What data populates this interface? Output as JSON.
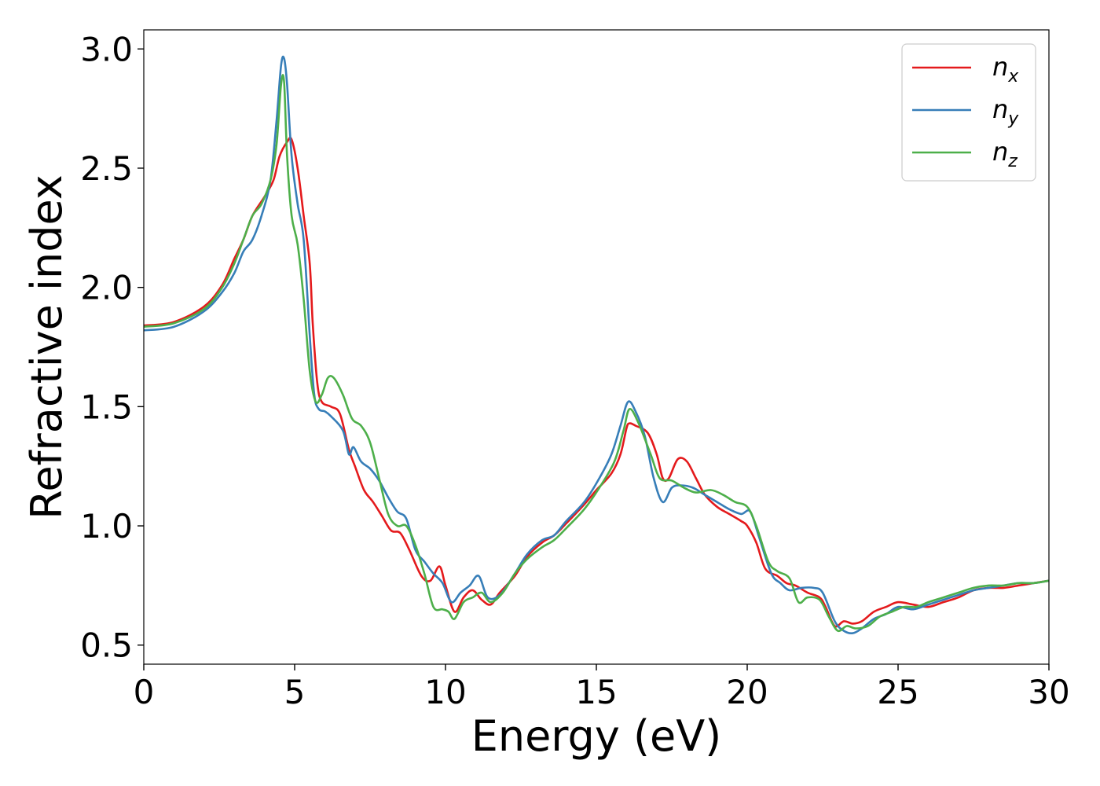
{
  "chart_data": {
    "type": "line",
    "title": "",
    "xlabel": "Energy (eV)",
    "ylabel": "Refractive index",
    "xlim": [
      0,
      30
    ],
    "ylim": [
      0.42,
      3.08
    ],
    "xticks": [
      0,
      5,
      10,
      15,
      20,
      25,
      30
    ],
    "yticks": [
      0.5,
      1.0,
      1.5,
      2.0,
      2.5,
      3.0
    ],
    "xtick_labels": [
      "0",
      "5",
      "10",
      "15",
      "20",
      "25",
      "30"
    ],
    "ytick_labels": [
      "0.5",
      "1.0",
      "1.5",
      "2.0",
      "2.5",
      "3.0"
    ],
    "grid": false,
    "legend_position": "top-right",
    "series": [
      {
        "name": "n_x",
        "label_main": "n",
        "label_sub": "x",
        "color": "#e41a1c",
        "points": [
          [
            0,
            1.84
          ],
          [
            1,
            1.855
          ],
          [
            2,
            1.92
          ],
          [
            2.6,
            2.01
          ],
          [
            3,
            2.12
          ],
          [
            3.3,
            2.2
          ],
          [
            3.6,
            2.3
          ],
          [
            4,
            2.38
          ],
          [
            4.3,
            2.45
          ],
          [
            4.5,
            2.55
          ],
          [
            4.75,
            2.61
          ],
          [
            4.9,
            2.62
          ],
          [
            5.1,
            2.5
          ],
          [
            5.3,
            2.3
          ],
          [
            5.5,
            2.1
          ],
          [
            5.6,
            1.85
          ],
          [
            5.75,
            1.6
          ],
          [
            5.9,
            1.52
          ],
          [
            6.2,
            1.5
          ],
          [
            6.5,
            1.47
          ],
          [
            6.8,
            1.32
          ],
          [
            7,
            1.25
          ],
          [
            7.3,
            1.15
          ],
          [
            7.6,
            1.1
          ],
          [
            7.9,
            1.04
          ],
          [
            8.2,
            0.98
          ],
          [
            8.5,
            0.97
          ],
          [
            8.8,
            0.9
          ],
          [
            9.2,
            0.79
          ],
          [
            9.5,
            0.77
          ],
          [
            9.8,
            0.83
          ],
          [
            10,
            0.75
          ],
          [
            10.3,
            0.64
          ],
          [
            10.6,
            0.7
          ],
          [
            10.9,
            0.73
          ],
          [
            11.2,
            0.69
          ],
          [
            11.5,
            0.67
          ],
          [
            11.8,
            0.72
          ],
          [
            12.3,
            0.79
          ],
          [
            12.7,
            0.87
          ],
          [
            13.2,
            0.93
          ],
          [
            13.6,
            0.96
          ],
          [
            14,
            1.01
          ],
          [
            14.6,
            1.09
          ],
          [
            15,
            1.15
          ],
          [
            15.5,
            1.22
          ],
          [
            15.8,
            1.3
          ],
          [
            16,
            1.41
          ],
          [
            16.1,
            1.43
          ],
          [
            16.3,
            1.42
          ],
          [
            16.7,
            1.39
          ],
          [
            17,
            1.3
          ],
          [
            17.2,
            1.2
          ],
          [
            17.4,
            1.2
          ],
          [
            17.7,
            1.28
          ],
          [
            18,
            1.27
          ],
          [
            18.3,
            1.2
          ],
          [
            18.6,
            1.13
          ],
          [
            19,
            1.08
          ],
          [
            19.4,
            1.05
          ],
          [
            19.8,
            1.02
          ],
          [
            20,
            1.0
          ],
          [
            20.3,
            0.93
          ],
          [
            20.6,
            0.82
          ],
          [
            21,
            0.79
          ],
          [
            21.3,
            0.76
          ],
          [
            21.6,
            0.75
          ],
          [
            22,
            0.72
          ],
          [
            22.4,
            0.7
          ],
          [
            22.6,
            0.66
          ],
          [
            22.9,
            0.58
          ],
          [
            23.2,
            0.6
          ],
          [
            23.5,
            0.59
          ],
          [
            23.8,
            0.6
          ],
          [
            24.2,
            0.64
          ],
          [
            24.6,
            0.66
          ],
          [
            25,
            0.68
          ],
          [
            25.5,
            0.67
          ],
          [
            26,
            0.66
          ],
          [
            26.5,
            0.68
          ],
          [
            27,
            0.7
          ],
          [
            27.5,
            0.73
          ],
          [
            28,
            0.74
          ],
          [
            28.5,
            0.74
          ],
          [
            29,
            0.75
          ],
          [
            29.5,
            0.76
          ],
          [
            30,
            0.77
          ]
        ]
      },
      {
        "name": "n_y",
        "label_main": "n",
        "label_sub": "y",
        "color": "#377eb8",
        "points": [
          [
            0,
            1.82
          ],
          [
            1,
            1.835
          ],
          [
            2,
            1.9
          ],
          [
            2.6,
            1.98
          ],
          [
            3,
            2.06
          ],
          [
            3.3,
            2.15
          ],
          [
            3.6,
            2.2
          ],
          [
            3.9,
            2.3
          ],
          [
            4.2,
            2.45
          ],
          [
            4.4,
            2.7
          ],
          [
            4.55,
            2.93
          ],
          [
            4.65,
            2.96
          ],
          [
            4.75,
            2.85
          ],
          [
            4.9,
            2.55
          ],
          [
            5.1,
            2.35
          ],
          [
            5.3,
            2.2
          ],
          [
            5.5,
            1.8
          ],
          [
            5.65,
            1.55
          ],
          [
            5.8,
            1.49
          ],
          [
            6,
            1.48
          ],
          [
            6.2,
            1.46
          ],
          [
            6.6,
            1.4
          ],
          [
            6.8,
            1.3
          ],
          [
            6.95,
            1.33
          ],
          [
            7.2,
            1.27
          ],
          [
            7.5,
            1.24
          ],
          [
            7.8,
            1.19
          ],
          [
            8.1,
            1.12
          ],
          [
            8.4,
            1.06
          ],
          [
            8.7,
            1.03
          ],
          [
            9,
            0.9
          ],
          [
            9.3,
            0.85
          ],
          [
            9.6,
            0.8
          ],
          [
            9.9,
            0.76
          ],
          [
            10.2,
            0.68
          ],
          [
            10.5,
            0.72
          ],
          [
            10.8,
            0.75
          ],
          [
            11.1,
            0.79
          ],
          [
            11.4,
            0.7
          ],
          [
            11.8,
            0.71
          ],
          [
            12.3,
            0.8
          ],
          [
            12.7,
            0.88
          ],
          [
            13.2,
            0.94
          ],
          [
            13.6,
            0.96
          ],
          [
            14,
            1.02
          ],
          [
            14.6,
            1.1
          ],
          [
            15.1,
            1.2
          ],
          [
            15.5,
            1.3
          ],
          [
            15.8,
            1.42
          ],
          [
            16.05,
            1.52
          ],
          [
            16.3,
            1.48
          ],
          [
            16.6,
            1.38
          ],
          [
            16.9,
            1.2
          ],
          [
            17.2,
            1.1
          ],
          [
            17.5,
            1.16
          ],
          [
            17.8,
            1.17
          ],
          [
            18.2,
            1.16
          ],
          [
            18.6,
            1.13
          ],
          [
            19,
            1.1
          ],
          [
            19.4,
            1.07
          ],
          [
            19.8,
            1.05
          ],
          [
            20.1,
            1.06
          ],
          [
            20.4,
            0.95
          ],
          [
            20.8,
            0.8
          ],
          [
            21.1,
            0.76
          ],
          [
            21.4,
            0.73
          ],
          [
            21.8,
            0.74
          ],
          [
            22.2,
            0.74
          ],
          [
            22.5,
            0.72
          ],
          [
            22.9,
            0.6
          ],
          [
            23.2,
            0.56
          ],
          [
            23.5,
            0.55
          ],
          [
            23.8,
            0.57
          ],
          [
            24.2,
            0.61
          ],
          [
            24.6,
            0.63
          ],
          [
            25,
            0.66
          ],
          [
            25.5,
            0.65
          ],
          [
            26,
            0.67
          ],
          [
            26.5,
            0.69
          ],
          [
            27,
            0.71
          ],
          [
            27.5,
            0.73
          ],
          [
            28,
            0.74
          ],
          [
            28.5,
            0.75
          ],
          [
            29,
            0.76
          ],
          [
            29.5,
            0.76
          ],
          [
            30,
            0.77
          ]
        ]
      },
      {
        "name": "n_z",
        "label_main": "n",
        "label_sub": "z",
        "color": "#4daf4a",
        "points": [
          [
            0,
            1.835
          ],
          [
            1,
            1.85
          ],
          [
            2,
            1.91
          ],
          [
            2.6,
            2.0
          ],
          [
            3,
            2.1
          ],
          [
            3.3,
            2.2
          ],
          [
            3.6,
            2.3
          ],
          [
            3.9,
            2.35
          ],
          [
            4.2,
            2.45
          ],
          [
            4.4,
            2.6
          ],
          [
            4.55,
            2.85
          ],
          [
            4.65,
            2.86
          ],
          [
            4.75,
            2.55
          ],
          [
            4.9,
            2.3
          ],
          [
            5.1,
            2.18
          ],
          [
            5.3,
            1.95
          ],
          [
            5.5,
            1.65
          ],
          [
            5.7,
            1.52
          ],
          [
            5.9,
            1.55
          ],
          [
            6.1,
            1.62
          ],
          [
            6.3,
            1.62
          ],
          [
            6.6,
            1.55
          ],
          [
            6.9,
            1.45
          ],
          [
            7.2,
            1.42
          ],
          [
            7.5,
            1.35
          ],
          [
            7.8,
            1.2
          ],
          [
            8.1,
            1.05
          ],
          [
            8.4,
            1.0
          ],
          [
            8.7,
            1.0
          ],
          [
            9,
            0.92
          ],
          [
            9.3,
            0.8
          ],
          [
            9.6,
            0.66
          ],
          [
            9.9,
            0.65
          ],
          [
            10.1,
            0.64
          ],
          [
            10.3,
            0.61
          ],
          [
            10.6,
            0.68
          ],
          [
            10.9,
            0.7
          ],
          [
            11.2,
            0.72
          ],
          [
            11.5,
            0.68
          ],
          [
            11.9,
            0.72
          ],
          [
            12.3,
            0.8
          ],
          [
            12.7,
            0.86
          ],
          [
            13.2,
            0.91
          ],
          [
            13.6,
            0.94
          ],
          [
            14,
            0.99
          ],
          [
            14.6,
            1.07
          ],
          [
            15.1,
            1.16
          ],
          [
            15.6,
            1.27
          ],
          [
            15.9,
            1.4
          ],
          [
            16.1,
            1.49
          ],
          [
            16.4,
            1.43
          ],
          [
            16.8,
            1.3
          ],
          [
            17.1,
            1.2
          ],
          [
            17.5,
            1.19
          ],
          [
            17.9,
            1.16
          ],
          [
            18.3,
            1.14
          ],
          [
            18.8,
            1.15
          ],
          [
            19.2,
            1.13
          ],
          [
            19.6,
            1.1
          ],
          [
            20,
            1.08
          ],
          [
            20.3,
            1.0
          ],
          [
            20.7,
            0.85
          ],
          [
            21,
            0.81
          ],
          [
            21.4,
            0.78
          ],
          [
            21.7,
            0.68
          ],
          [
            22,
            0.7
          ],
          [
            22.4,
            0.69
          ],
          [
            22.7,
            0.62
          ],
          [
            23,
            0.56
          ],
          [
            23.3,
            0.58
          ],
          [
            23.6,
            0.57
          ],
          [
            24,
            0.58
          ],
          [
            24.4,
            0.62
          ],
          [
            24.8,
            0.64
          ],
          [
            25.2,
            0.66
          ],
          [
            25.6,
            0.66
          ],
          [
            26,
            0.68
          ],
          [
            26.5,
            0.7
          ],
          [
            27,
            0.72
          ],
          [
            27.5,
            0.74
          ],
          [
            28,
            0.75
          ],
          [
            28.5,
            0.75
          ],
          [
            29,
            0.76
          ],
          [
            29.5,
            0.76
          ],
          [
            30,
            0.77
          ]
        ]
      }
    ]
  }
}
